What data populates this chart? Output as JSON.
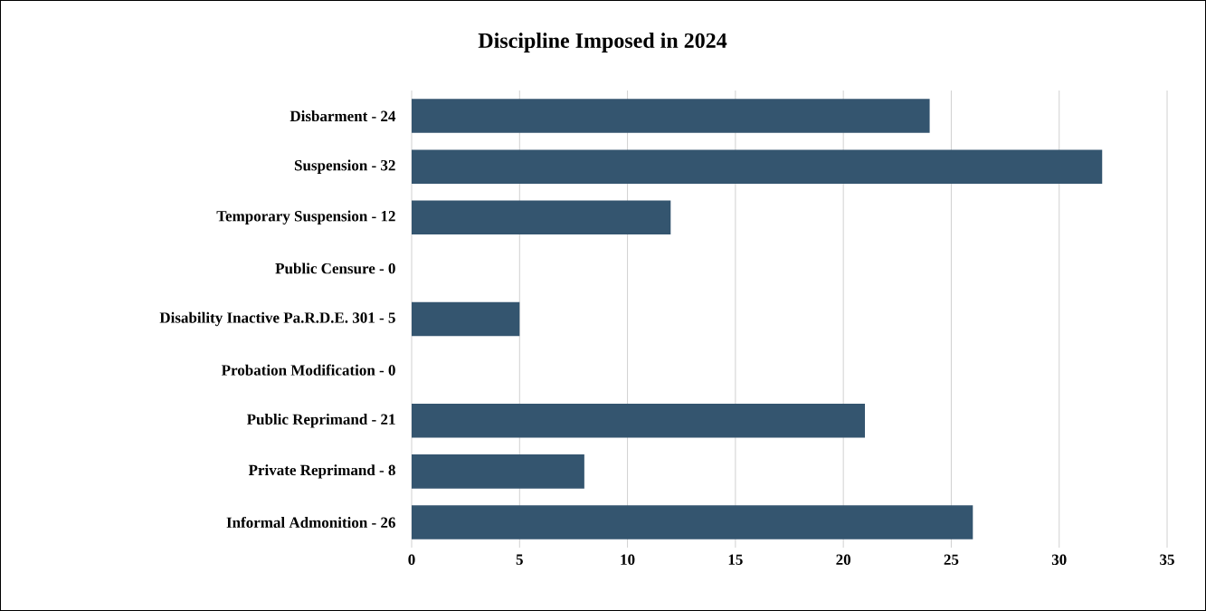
{
  "chart_data": {
    "type": "bar",
    "orientation": "horizontal",
    "title": "Discipline Imposed in 2024",
    "categories": [
      "Disbarment - 24",
      "Suspension - 32",
      "Temporary Suspension - 12",
      "Public Censure - 0",
      "Disability Inactive Pa.R.D.E. 301 - 5",
      "Probation Modification - 0",
      "Public Reprimand - 21",
      "Private Reprimand - 8",
      "Informal Admonition - 26"
    ],
    "values": [
      24,
      32,
      12,
      0,
      5,
      0,
      21,
      8,
      26
    ],
    "color": "#34556f",
    "xlim": [
      0,
      35
    ],
    "xticks": [
      0,
      5,
      10,
      15,
      20,
      25,
      30,
      35
    ],
    "grid": "x"
  }
}
